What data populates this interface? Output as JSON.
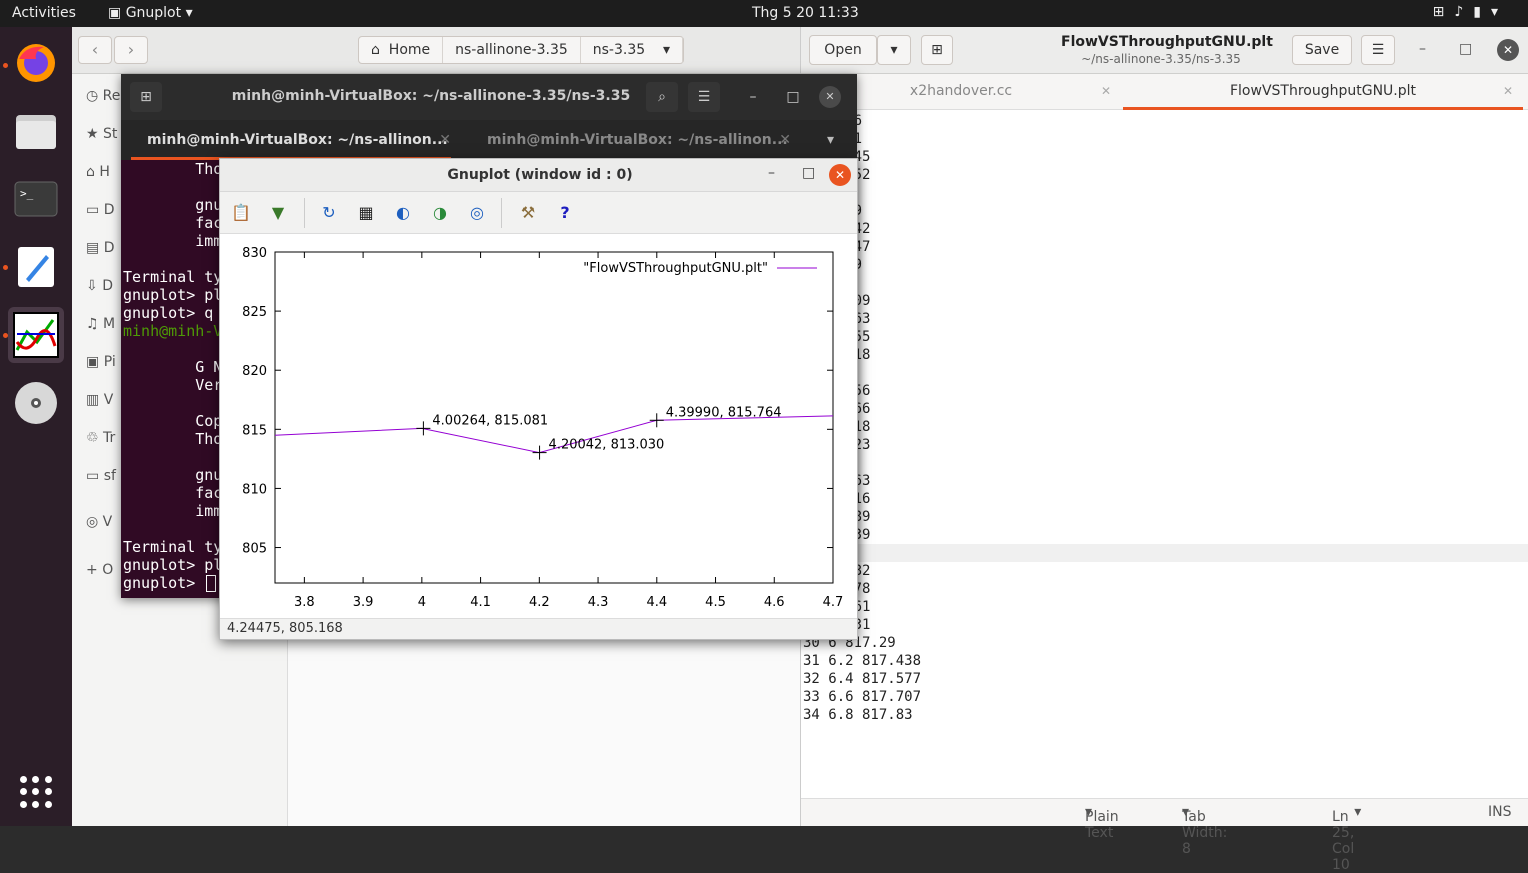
{
  "topbar": {
    "activities": "Activities",
    "app_name": "Gnuplot",
    "clock": "Thg 5 20  11:33"
  },
  "dock": {
    "items": [
      "firefox-icon",
      "files-icon",
      "terminal-icon",
      "text-editor-icon",
      "gnuplot-icon",
      "disc-icon"
    ]
  },
  "files": {
    "breadcrumbs": [
      "Home",
      "ns-allinone-3.35",
      "ns-3.35"
    ],
    "sidebar_fragments": [
      "Re",
      "St",
      "H",
      "D",
      "D",
      "D",
      "M",
      "Pi",
      "V",
      "Tr",
      "sf",
      "V",
      "O"
    ]
  },
  "gedit": {
    "open_label": "Open",
    "title": "FlowVSThroughputGNU.plt",
    "subtitle": "~/ns-allinone-3.35/ns-3.35",
    "save_label": "Save",
    "tabs": [
      "x2handover.cc",
      "FlowVSThroughputGNU.plt"
    ],
    "lines": [
      " 672.26",
      " 750.31",
      " 774.845",
      " 786.852",
      " 3.975",
      " 798.69",
      " 802.042",
      " 804.547",
      " 806.49",
      " 8.042",
      " 809.309",
      " 810.363",
      " 811.255",
      " 812.018",
      " 2.678",
      " 813.256",
      " 813.766",
      " 814.218",
      " 814.623",
      " 4.987",
      " 812.963",
      " 815.616",
      " 815.889",
      " 816.139",
      " 6.369",
      " 816.582",
      " 816.778",
      " 816.961",
      " 817.131",
      "30 6 817.29",
      "31 6.2 817.438",
      "32 6.4 817.577",
      "33 6.6 817.707",
      "34 6.8 817.83"
    ],
    "status": {
      "language": "Plain Text",
      "tab_width": "Tab Width: 8",
      "position": "Ln 25, Col 10",
      "mode": "INS"
    }
  },
  "terminal": {
    "title": "minh@minh-VirtualBox: ~/ns-allinone-3.35/ns-3.35",
    "tabs": [
      "minh@minh-VirtualBox: ~/ns-allinon...",
      "minh@minh-VirtualBox: ~/ns-allinon..."
    ],
    "lines": [
      "        Tho",
      "",
      "        gnu",
      "        fac",
      "        imm",
      "",
      "Terminal ty",
      "gnuplot> pl",
      "gnuplot> q",
      "minh@minh-V",
      "",
      "        G N",
      "        Ver",
      "",
      "        Cop",
      "        Tho",
      "",
      "        gnu",
      "        fac",
      "        imm",
      "",
      "Terminal ty",
      "gnuplot> pl",
      "gnuplot> "
    ]
  },
  "gnuplot": {
    "title": "Gnuplot (window id : 0)",
    "status": "4.24475, 805.168",
    "tools": [
      "clipboard-icon",
      "export-icon",
      "replot-icon",
      "grid-icon",
      "zoom-back-icon",
      "zoom-forward-icon",
      "zoom-autoscale-icon",
      "settings-icon",
      "help-icon"
    ]
  },
  "chart_data": {
    "type": "line",
    "legend": "\"FlowVSThroughputGNU.plt\"",
    "legend_position": "top-right",
    "xlim": [
      3.75,
      4.7
    ],
    "ylim": [
      802,
      830
    ],
    "xticks": [
      "3.8",
      "3.9",
      "4",
      "4.1",
      "4.2",
      "4.3",
      "4.4",
      "4.5",
      "4.6",
      "4.7"
    ],
    "yticks": [
      "805",
      "810",
      "815",
      "820",
      "825",
      "830"
    ],
    "series": [
      {
        "name": "\"FlowVSThroughputGNU.plt\"",
        "color": "#9400d3",
        "x": [
          3.75,
          4.0,
          4.2,
          4.4,
          4.7
        ],
        "y": [
          814.5,
          815.081,
          813.03,
          815.764,
          816.139
        ]
      }
    ],
    "annotations": [
      {
        "x": 4.00264,
        "y": 815.081,
        "text": "4.00264,  815.081"
      },
      {
        "x": 4.20042,
        "y": 813.03,
        "text": "4.20042,  813.030"
      },
      {
        "x": 4.3999,
        "y": 815.764,
        "text": "4.39990,  815.764"
      }
    ]
  }
}
